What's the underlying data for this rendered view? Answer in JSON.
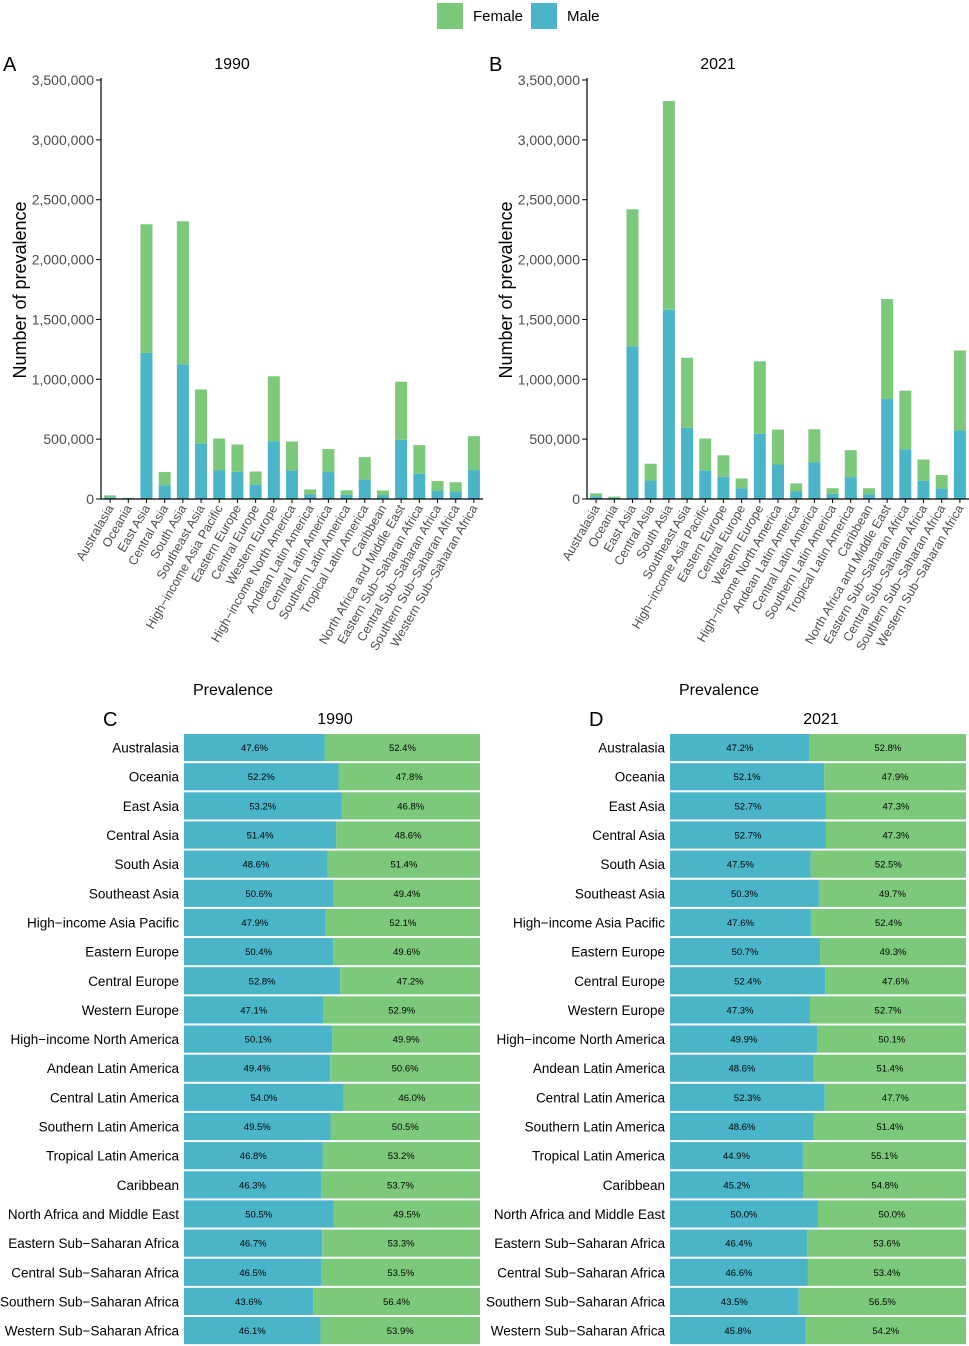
{
  "colors": {
    "female": "#7cc97c",
    "male": "#4ab5c8",
    "axis": "#000000"
  },
  "legend": {
    "items": [
      {
        "label": "Female",
        "color": "#7cc97c"
      },
      {
        "label": "Male",
        "color": "#4ab5c8"
      }
    ]
  },
  "shared": {
    "xlabel": "Prevalence",
    "ylabel": "Number of prevalence",
    "y_ticks": [
      "0",
      "500,000",
      "1,000,000",
      "1,500,000",
      "2,000,000",
      "2,500,000",
      "3,000,000",
      "3,500,000"
    ]
  },
  "chart_data": [
    {
      "panel": "A",
      "title": "1990",
      "type": "bar",
      "stacked": true,
      "xlabel": "Prevalence",
      "ylabel": "Number of prevalence",
      "ylim": [
        0,
        3500000
      ],
      "categories": [
        "Australasia",
        "Oceania",
        "East Asia",
        "Central Asia",
        "South Asia",
        "Southeast Asia",
        "High−income Asia Pacific",
        "Eastern Europe",
        "Central Europe",
        "Western Europe",
        "High−income North America",
        "Andean Latin America",
        "Central Latin America",
        "Southern Latin America",
        "Tropical Latin America",
        "Caribbean",
        "North Africa and Middle East",
        "Eastern Sub−Saharan Africa",
        "Central Sub−Saharan Africa",
        "Southern Sub−Saharan Africa",
        "Western Sub−Saharan Africa"
      ],
      "series": [
        {
          "name": "Male",
          "values": [
            14000,
            5000,
            1220000,
            115000,
            1125000,
            462000,
            242000,
            228000,
            120000,
            483000,
            240000,
            38000,
            225000,
            36000,
            162000,
            33000,
            495000,
            210000,
            70000,
            62000,
            242000
          ]
        },
        {
          "name": "Female",
          "values": [
            16000,
            5000,
            1075000,
            110000,
            1195000,
            453000,
            263000,
            227000,
            110000,
            542000,
            240000,
            42000,
            192000,
            36000,
            188000,
            38000,
            485000,
            240000,
            80000,
            78000,
            283000
          ]
        }
      ]
    },
    {
      "panel": "B",
      "title": "2021",
      "type": "bar",
      "stacked": true,
      "xlabel": "Prevalence",
      "ylabel": "Number of prevalence",
      "ylim": [
        0,
        3500000
      ],
      "categories": [
        "Australasia",
        "Oceania",
        "East Asia",
        "Central Asia",
        "South Asia",
        "Southeast Asia",
        "High−income Asia Pacific",
        "Eastern Europe",
        "Central Europe",
        "Western Europe",
        "High−income North America",
        "Andean Latin America",
        "Central Latin America",
        "Southern Latin America",
        "Tropical Latin America",
        "Caribbean",
        "North Africa and Middle East",
        "Eastern Sub−Saharan Africa",
        "Central Sub−Saharan Africa",
        "Southern Sub−Saharan Africa",
        "Western Sub−Saharan Africa"
      ],
      "series": [
        {
          "name": "Male",
          "values": [
            22000,
            10000,
            1275000,
            155000,
            1580000,
            595000,
            240000,
            185000,
            90000,
            545000,
            288000,
            63000,
            305000,
            44000,
            183000,
            40000,
            835000,
            415000,
            153000,
            87000,
            573000
          ]
        },
        {
          "name": "Female",
          "values": [
            25000,
            10000,
            1145000,
            140000,
            1745000,
            585000,
            265000,
            180000,
            82000,
            605000,
            292000,
            67000,
            278000,
            46000,
            225000,
            50000,
            835000,
            490000,
            177000,
            113000,
            667000
          ]
        }
      ]
    },
    {
      "panel": "C",
      "title": "1990",
      "type": "bar",
      "orientation": "horizontal",
      "percent": true,
      "categories": [
        "Australasia",
        "Oceania",
        "East Asia",
        "Central Asia",
        "South Asia",
        "Southeast Asia",
        "High−income Asia Pacific",
        "Eastern Europe",
        "Central Europe",
        "Western Europe",
        "High−income North America",
        "Andean Latin America",
        "Central Latin America",
        "Southern Latin America",
        "Tropical Latin America",
        "Caribbean",
        "North Africa and Middle East",
        "Eastern Sub−Saharan Africa",
        "Central Sub−Saharan Africa",
        "Southern Sub−Saharan Africa",
        "Western Sub−Saharan Africa"
      ],
      "male_labels": [
        "47.6%",
        "52.2%",
        "53.2%",
        "51.4%",
        "48.6%",
        "50.6%",
        "47.9%",
        "50.4%",
        "52.8%",
        "47.1%",
        "50.1%",
        "49.4%",
        "54.0%",
        "49.5%",
        "46.8%",
        "46.3%",
        "50.5%",
        "46.7%",
        "46.5%",
        "43.6%",
        "46.1%"
      ],
      "female_labels": [
        "52.4%",
        "47.8%",
        "46.8%",
        "48.6%",
        "51.4%",
        "49.4%",
        "52.1%",
        "49.6%",
        "47.2%",
        "52.9%",
        "49.9%",
        "50.6%",
        "46.0%",
        "50.5%",
        "53.2%",
        "53.7%",
        "49.5%",
        "53.3%",
        "53.5%",
        "56.4%",
        "53.9%"
      ]
    },
    {
      "panel": "D",
      "title": "2021",
      "type": "bar",
      "orientation": "horizontal",
      "percent": true,
      "categories": [
        "Australasia",
        "Oceania",
        "East Asia",
        "Central Asia",
        "South Asia",
        "Southeast Asia",
        "High−income Asia Pacific",
        "Eastern Europe",
        "Central Europe",
        "Western Europe",
        "High−income North America",
        "Andean Latin America",
        "Central Latin America",
        "Southern Latin America",
        "Tropical Latin America",
        "Caribbean",
        "North Africa and Middle East",
        "Eastern Sub−Saharan Africa",
        "Central Sub−Saharan Africa",
        "Southern Sub−Saharan Africa",
        "Western Sub−Saharan Africa"
      ],
      "male_labels": [
        "47.2%",
        "52.1%",
        "52.7%",
        "52.7%",
        "47.5%",
        "50.3%",
        "47.6%",
        "50.7%",
        "52.4%",
        "47.3%",
        "49.9%",
        "48.6%",
        "52.3%",
        "48.6%",
        "44.9%",
        "45.2%",
        "50.0%",
        "46.4%",
        "46.6%",
        "43.5%",
        "45.8%"
      ],
      "female_labels": [
        "52.8%",
        "47.9%",
        "47.3%",
        "47.3%",
        "52.5%",
        "49.7%",
        "52.4%",
        "49.3%",
        "47.6%",
        "52.7%",
        "50.1%",
        "51.4%",
        "47.7%",
        "51.4%",
        "55.1%",
        "54.8%",
        "50.0%",
        "53.6%",
        "53.4%",
        "56.5%",
        "54.2%"
      ]
    }
  ]
}
